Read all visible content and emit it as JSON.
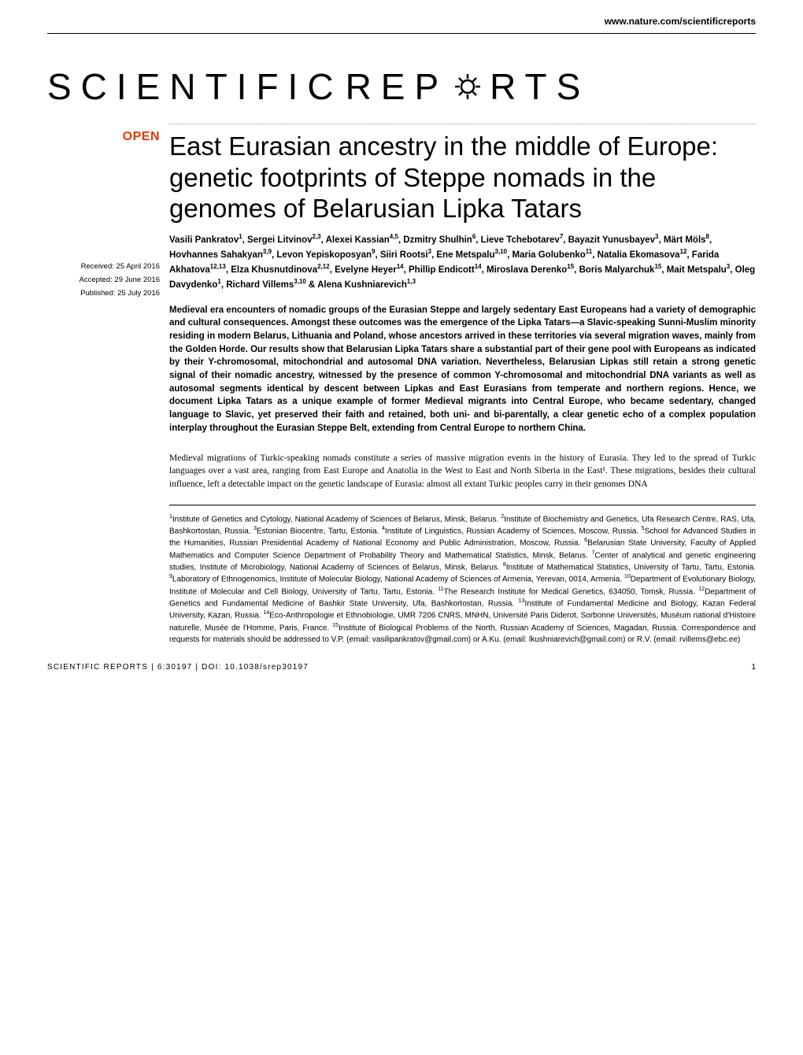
{
  "header": {
    "url": "www.nature.com/scientificreports",
    "logo_left": "SCIENTIFIC",
    "logo_right_1": "REP",
    "logo_right_2": "RTS",
    "open_badge": "OPEN"
  },
  "dates": {
    "received_label": "Received:",
    "received": "25 April 2016",
    "accepted_label": "Accepted:",
    "accepted": "29 June 2016",
    "published_label": "Published:",
    "published": "25 July 2016"
  },
  "title": "East Eurasian ancestry in the middle of Europe: genetic footprints of Steppe nomads in the genomes of Belarusian Lipka Tatars",
  "authors_html": "Vasili Pankratov<sup>1</sup>, Sergei Litvinov<sup>2,3</sup>, Alexei Kassian<sup>4,5</sup>, Dzmitry Shulhin<sup>6</sup>, Lieve Tchebotarev<sup>7</sup>, Bayazit Yunusbayev<sup>3</sup>, Märt Möls<sup>8</sup>, Hovhannes Sahakyan<sup>3,9</sup>, Levon Yepiskoposyan<sup>9</sup>, Siiri Rootsi<sup>3</sup>, Ene Metspalu<sup>3,10</sup>, Maria Golubenko<sup>11</sup>, Natalia Ekomasova<sup>12</sup>, Farida Akhatova<sup>12,13</sup>, Elza Khusnutdinova<sup>2,12</sup>, Evelyne Heyer<sup>14</sup>, Phillip Endicott<sup>14</sup>, Miroslava Derenko<sup>15</sup>, Boris Malyarchuk<sup>15</sup>, Mait Metspalu<sup>3</sup>, Oleg Davydenko<sup>1</sup>, Richard Villems<sup>3,10</sup> & Alena Kushniarevich<sup>1,3</sup>",
  "abstract": "Medieval era encounters of nomadic groups of the Eurasian Steppe and largely sedentary East Europeans had a variety of demographic and cultural consequences. Amongst these outcomes was the emergence of the Lipka Tatars—a Slavic-speaking Sunni-Muslim minority residing in modern Belarus, Lithuania and Poland, whose ancestors arrived in these territories via several migration waves, mainly from the Golden Horde. Our results show that Belarusian Lipka Tatars share a substantial part of their gene pool with Europeans as indicated by their Y-chromosomal, mitochondrial and autosomal DNA variation. Nevertheless, Belarusian Lipkas still retain a strong genetic signal of their nomadic ancestry, witnessed by the presence of common Y-chromosomal and mitochondrial DNA variants as well as autosomal segments identical by descent between Lipkas and East Eurasians from temperate and northern regions. Hence, we document Lipka Tatars as a unique example of former Medieval migrants into Central Europe, who became sedentary, changed language to Slavic, yet preserved their faith and retained, both uni- and bi-parentally, a clear genetic echo of a complex population interplay throughout the Eurasian Steppe Belt, extending from Central Europe to northern China.",
  "body": "Medieval migrations of Turkic-speaking nomads constitute a series of massive migration events in the history of Eurasia. They led to the spread of Turkic languages over a vast area, ranging from East Europe and Anatolia in the West to East and North Siberia in the East¹. These migrations, besides their cultural influence, left a detectable impact on the genetic landscape of Eurasia: almost all extant Turkic peoples carry in their genomes DNA",
  "affiliations_html": "<sup>1</sup>Institute of Genetics and Cytology, National Academy of Sciences of Belarus, Minsk, Belarus. <sup>2</sup>Institute of Biochemistry and Genetics, Ufa Research Centre, RAS, Ufa, Bashkortostan, Russia. <sup>3</sup>Estonian Biocentre, Tartu, Estonia. <sup>4</sup>Institute of Linguistics, Russian Academy of Sciences, Moscow, Russia. <sup>5</sup>School for Advanced Studies in the Humanities, Russian Presidential Academy of National Economy and Public Administration, Moscow, Russia. <sup>6</sup>Belarusian State University, Faculty of Applied Mathematics and Computer Science Department of Probability Theory and Mathematical Statistics, Minsk, Belarus. <sup>7</sup>Center of analytical and genetic engineering studies, Institute of Microbiology, National Academy of Sciences of Belarus, Minsk, Belarus. <sup>8</sup>Institute of Mathematical Statistics, University of Tartu, Tartu, Estonia. <sup>9</sup>Laboratory of Ethnogenomics, Institute of Molecular Biology, National Academy of Sciences of Armenia, Yerevan, 0014, Armenia. <sup>10</sup>Department of Evolutionary Biology, Institute of Molecular and Cell Biology, University of Tartu, Tartu, Estonia. <sup>11</sup>The Research Institute for Medical Genetics, 634050, Tomsk, Russia. <sup>12</sup>Department of Genetics and Fundamental Medicine of Bashkir State University, Ufa, Bashkortostan, Russia. <sup>13</sup>Institute of Fundamental Medicine and Biology, Kazan Federal University, Kazan, Russia. <sup>14</sup>Eco-Anthropologie et Ethnobiologie, UMR 7206 CNRS, MNHN, Université Paris Diderot, Sorbonne Universités, Muséum national d'Histoire naturelle, Musée de l'Homme, Paris, France. <sup>15</sup>Institute of Biological Problems of the North, Russian Academy of Sciences, Magadan, Russia. Correspondence and requests for materials should be addressed to V.P. (email: vasilipankratov@gmail.com) or A.Ku. (email: lkushniarevich@gmail.com) or R.V. (email: rvillems@ebc.ee)",
  "footer": {
    "journal": "SCIENTIFIC REPORTS",
    "citation": " | 6:30197 | DOI: 10.1038/srep30197",
    "page": "1"
  },
  "colors": {
    "open_badge": "#e63900",
    "gear_stroke": "#000000",
    "text": "#000000",
    "dotted_border": "#999999"
  }
}
